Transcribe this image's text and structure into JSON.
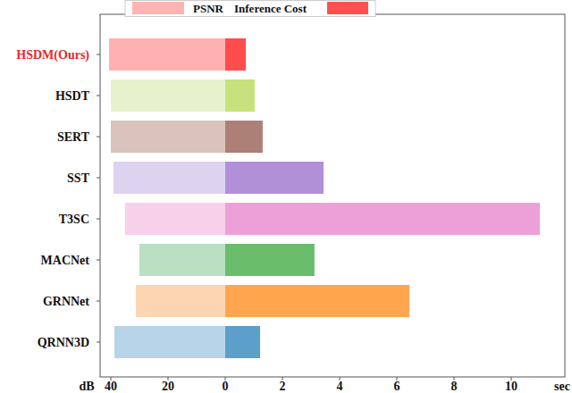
{
  "chart_data": {
    "type": "bar",
    "orientation": "horizontal",
    "categories": [
      "HSDM(Ours)",
      "HSDT",
      "SERT",
      "SST",
      "T3SC",
      "MACNet",
      "GRNNet",
      "QRNN3D"
    ],
    "series": [
      {
        "name": "PSNR",
        "color": "#ffb3b3",
        "colors": [
          "#ffb0b0",
          "#e6f2cb",
          "#d9c3ba",
          "#dcd3ef",
          "#f7d0ea",
          "#badfc2",
          "#fcd6b3",
          "#b8d4e9"
        ],
        "values": [
          40.6,
          40.0,
          40.0,
          39.1,
          35.0,
          30.0,
          31.25,
          38.75
        ]
      },
      {
        "name": "Inference Cost",
        "color": "#ff5050",
        "axis": "x2",
        "colors": [
          "#ff4c4c",
          "#c7e27c",
          "#ad8077",
          "#b290d8",
          "#eda0d8",
          "#6abd6a",
          "#ffa64f",
          "#5c9fca"
        ],
        "values": [
          0.72,
          1.03,
          1.31,
          3.44,
          11.0,
          3.12,
          6.44,
          1.22
        ]
      }
    ],
    "xlabel": "dB",
    "x2label": "sec",
    "xlim": [
      0,
      43.75
    ],
    "xticks": [
      20,
      40
    ],
    "x2lim": [
      0,
      11.875
    ],
    "x2ticks": [
      0,
      2,
      4,
      6,
      8,
      10
    ],
    "legend": "top",
    "grid": false
  }
}
